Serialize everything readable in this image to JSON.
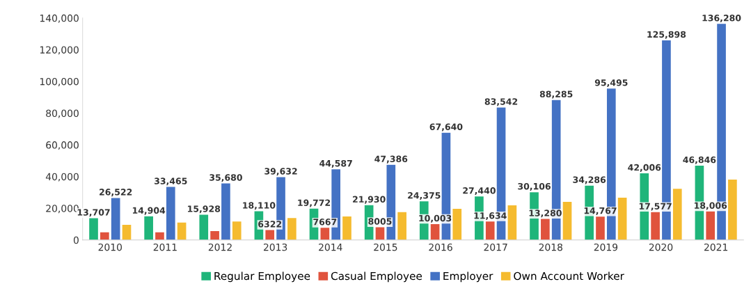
{
  "chart_data": {
    "type": "bar",
    "categories": [
      "2010",
      "2011",
      "2012",
      "2013",
      "2014",
      "2015",
      "2016",
      "2017",
      "2018",
      "2019",
      "2020",
      "2021"
    ],
    "series": [
      {
        "name": "Regular Employee",
        "color": "#1fb57a",
        "values": [
          13707,
          14904,
          15928,
          18110,
          19772,
          21930,
          24375,
          27440,
          30106,
          34286,
          42006,
          46846
        ],
        "value_labels": [
          "13,707",
          "14,904",
          "15,928",
          "18,110",
          "19,772",
          "21,930",
          "24,375",
          "27,440",
          "30,106",
          "34,286",
          "42,006",
          "46,846"
        ]
      },
      {
        "name": "Casual Employee",
        "color": "#e0533d",
        "values": [
          4800,
          4800,
          5600,
          6322,
          7667,
          8005,
          10003,
          11634,
          13280,
          14767,
          17577,
          18006
        ],
        "value_labels": [
          null,
          null,
          null,
          "6322",
          "7667",
          "8005",
          "10,003",
          "11,634",
          "13,280",
          "14,767",
          "17,577",
          "18,006"
        ]
      },
      {
        "name": "Employer",
        "color": "#4472c4",
        "values": [
          26522,
          33465,
          35680,
          39632,
          44587,
          47386,
          67640,
          83542,
          88285,
          95495,
          125898,
          136280
        ],
        "value_labels": [
          "26,522",
          "33,465",
          "35,680",
          "39,632",
          "44,587",
          "47,386",
          "67,640",
          "83,542",
          "88,285",
          "95,495",
          "125,898",
          "136,280"
        ]
      },
      {
        "name": "Own Account Worker",
        "color": "#f5bb2f",
        "values": [
          9600,
          11000,
          11700,
          13800,
          14800,
          17600,
          19700,
          21900,
          24000,
          26700,
          32300,
          38100
        ]
      }
    ],
    "ylim": [
      0,
      140000
    ],
    "yticks": [
      {
        "value": 0,
        "label": "0"
      },
      {
        "value": 20000,
        "label": "20,000"
      },
      {
        "value": 40000,
        "label": "40,000"
      },
      {
        "value": 60000,
        "label": "60,000"
      },
      {
        "value": 80000,
        "label": "80,000"
      },
      {
        "value": 100000,
        "label": "100,000"
      },
      {
        "value": 120000,
        "label": "120,000"
      },
      {
        "value": 140000,
        "label": "140,000"
      }
    ],
    "grid": false,
    "legend": "bottom"
  }
}
